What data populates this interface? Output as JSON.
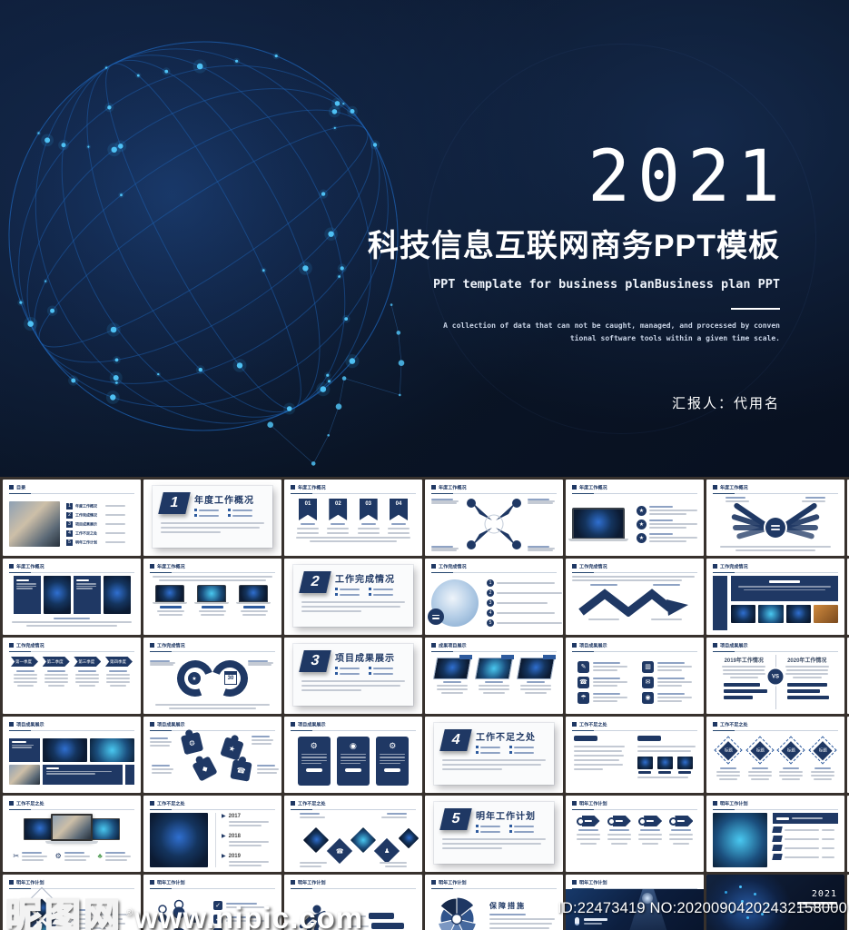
{
  "hero": {
    "year": "2021",
    "title": "科技信息互联网商务PPT模板",
    "subtitle": "PPT template for business planBusiness plan PPT",
    "description_line1": "A collection of data that can not be caught, managed, and processed by conven",
    "description_line2": "tional software tools within a given time scale.",
    "presenter": "汇报人：代用名"
  },
  "theme": {
    "navy": "#1f3864",
    "blue": "#2e5b9e",
    "cyan": "#49c8f0",
    "dot_glow": "#54ccff",
    "bar_gray": "#c4cad4",
    "grid_gap_bg": "#37312d",
    "hero_bg": "#0a1526"
  },
  "watermark": {
    "logo": "昵图网",
    "reg": "®",
    "url": "www.nipic.com"
  },
  "footer_id": "ID:22473419 NO:20200904202432158000",
  "sections": [
    {
      "number": "1",
      "title": "年度工作概况"
    },
    {
      "number": "2",
      "title": "工作完成情况"
    },
    {
      "number": "3",
      "title": "项目成果展示"
    },
    {
      "number": "4",
      "title": "工作不足之处"
    },
    {
      "number": "5",
      "title": "明年工作计划"
    }
  ],
  "thumbnails": [
    {
      "type": "toc",
      "header": "目录",
      "items": [
        "年度工作概况",
        "工作完成情况",
        "项目成果展示",
        "工作不足之处",
        "明年工作计划"
      ]
    },
    {
      "type": "section",
      "number": "1",
      "title": "年度工作概况"
    },
    {
      "type": "flags",
      "header": "年度工作概况",
      "items": [
        "01",
        "02",
        "03",
        "04"
      ]
    },
    {
      "type": "xarrows",
      "header": "年度工作概况"
    },
    {
      "type": "laptoplist",
      "header": "年度工作概况"
    },
    {
      "type": "wings",
      "header": "年度工作概况"
    },
    {
      "type": "panels4",
      "header": "年度工作概况"
    },
    {
      "type": "laptops3",
      "header": "年度工作概况"
    },
    {
      "type": "section",
      "number": "2",
      "title": "工作完成情况"
    },
    {
      "type": "circlelist",
      "header": "工作完成情况"
    },
    {
      "type": "zigzag",
      "header": "工作完成情况"
    },
    {
      "type": "bandphotos",
      "header": "工作完成情况"
    },
    {
      "type": "chevrons",
      "header": "工作完成情况",
      "items": [
        "第一季度",
        "第二季度",
        "第三季度",
        "第四季度"
      ]
    },
    {
      "type": "rings",
      "header": "工作完成情况",
      "calendar": "30"
    },
    {
      "type": "section",
      "number": "3",
      "title": "项目成果展示"
    },
    {
      "type": "slanted3",
      "header": "成果项目展示"
    },
    {
      "type": "icons6",
      "header": "项目成果展示",
      "icons": [
        {
          "name": "pencil-icon",
          "glyph": "✎"
        },
        {
          "name": "bar-chart-icon",
          "glyph": "▥"
        },
        {
          "name": "phone-icon",
          "glyph": "☎"
        },
        {
          "name": "mail-icon",
          "glyph": "✉"
        },
        {
          "name": "umbrella-icon",
          "glyph": "☂"
        },
        {
          "name": "monitor-icon",
          "glyph": "◉"
        }
      ]
    },
    {
      "type": "vs",
      "header": "项目成果展示",
      "left": "2019年工作情况",
      "right": "2020年工作情况",
      "badge": "VS"
    },
    {
      "type": "mosaic",
      "header": "项目成果展示"
    },
    {
      "type": "puzzle",
      "header": "项目成果展示",
      "icons": [
        {
          "name": "gear-icon",
          "glyph": "⚙"
        },
        {
          "name": "star-icon",
          "glyph": "★"
        },
        {
          "name": "diamond-icon",
          "glyph": "◆"
        },
        {
          "name": "phone-icon",
          "glyph": "☎"
        }
      ]
    },
    {
      "type": "cards3",
      "header": "项目成果展示",
      "icons": [
        {
          "name": "gear-icon",
          "glyph": "⚙"
        },
        {
          "name": "target-icon",
          "glyph": "◉"
        },
        {
          "name": "gear-icon",
          "glyph": "⚙"
        }
      ]
    },
    {
      "type": "section",
      "number": "4",
      "title": "工作不足之处"
    },
    {
      "type": "twocol",
      "header": "工作不足之处"
    },
    {
      "type": "diamonds4",
      "header": "工作不足之处",
      "label": "标题"
    },
    {
      "type": "fanscreens",
      "header": "工作不足之处",
      "icons": [
        {
          "name": "scissors-icon",
          "glyph": "✂"
        },
        {
          "name": "gear-icon",
          "glyph": "⚙"
        },
        {
          "name": "club-icon",
          "glyph": "♣"
        }
      ]
    },
    {
      "type": "timeline",
      "header": "工作不足之处",
      "years": [
        "2017",
        "2018",
        "2019"
      ]
    },
    {
      "type": "dmosaic",
      "header": "工作不足之处",
      "icons": [
        {
          "name": "phone-icon",
          "glyph": "☎"
        },
        {
          "name": "chess-icon",
          "glyph": "♟"
        }
      ]
    },
    {
      "type": "section",
      "number": "5",
      "title": "明年工作计划"
    },
    {
      "type": "arrows4",
      "header": "明年工作计划"
    },
    {
      "type": "photolist",
      "header": "明年工作计划"
    },
    {
      "type": "drot",
      "header": "明年工作计划"
    },
    {
      "type": "people",
      "header": "明年工作计划"
    },
    {
      "type": "runner",
      "header": "明年工作计划"
    },
    {
      "type": "pie",
      "header": "明年工作计划",
      "title": "保障措施"
    },
    {
      "type": "thanks",
      "header": "明年工作计划"
    },
    {
      "type": "cover",
      "year": "2021"
    }
  ]
}
